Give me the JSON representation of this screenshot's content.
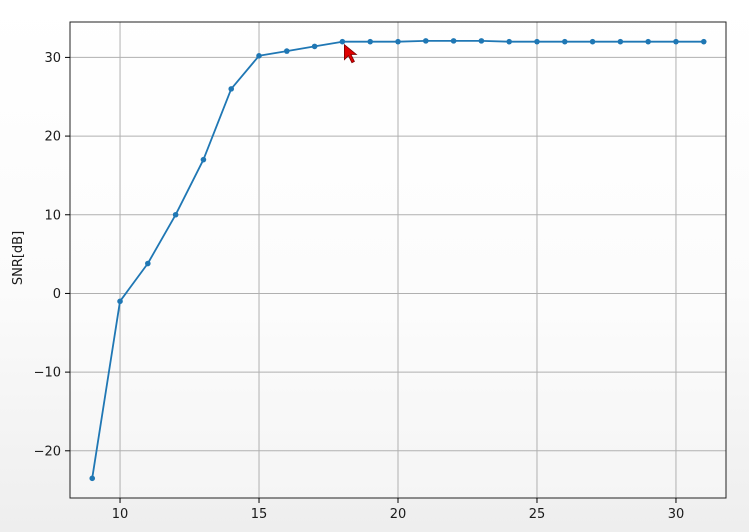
{
  "chart_data": {
    "type": "line",
    "title": "",
    "xlabel": "",
    "ylabel": "SNR[dB]",
    "xlim": [
      8.2,
      31.8
    ],
    "ylim": [
      -26,
      34.5
    ],
    "x_ticks": [
      10,
      15,
      20,
      25,
      30
    ],
    "y_ticks": [
      -20,
      -10,
      0,
      10,
      20,
      30
    ],
    "grid": true,
    "legend": "none",
    "marker": "dot",
    "colors": {
      "line": "#1f77b4",
      "grid": "#b0b0b0",
      "cursor": "#e00000"
    },
    "series": [
      {
        "x": [
          9,
          10,
          11,
          12,
          13,
          14,
          15,
          16,
          17,
          18,
          19,
          20,
          21,
          22,
          23,
          24,
          25,
          26,
          27,
          28,
          29,
          30,
          31
        ],
        "y": [
          -23.5,
          -1,
          3.8,
          10,
          17,
          26,
          30.2,
          30.8,
          31.4,
          32,
          32,
          32,
          32.1,
          32.1,
          32.1,
          32,
          32,
          32,
          32,
          32,
          32,
          32,
          32
        ]
      }
    ]
  },
  "cursor_icon": "mouse-pointer-arrow-icon"
}
